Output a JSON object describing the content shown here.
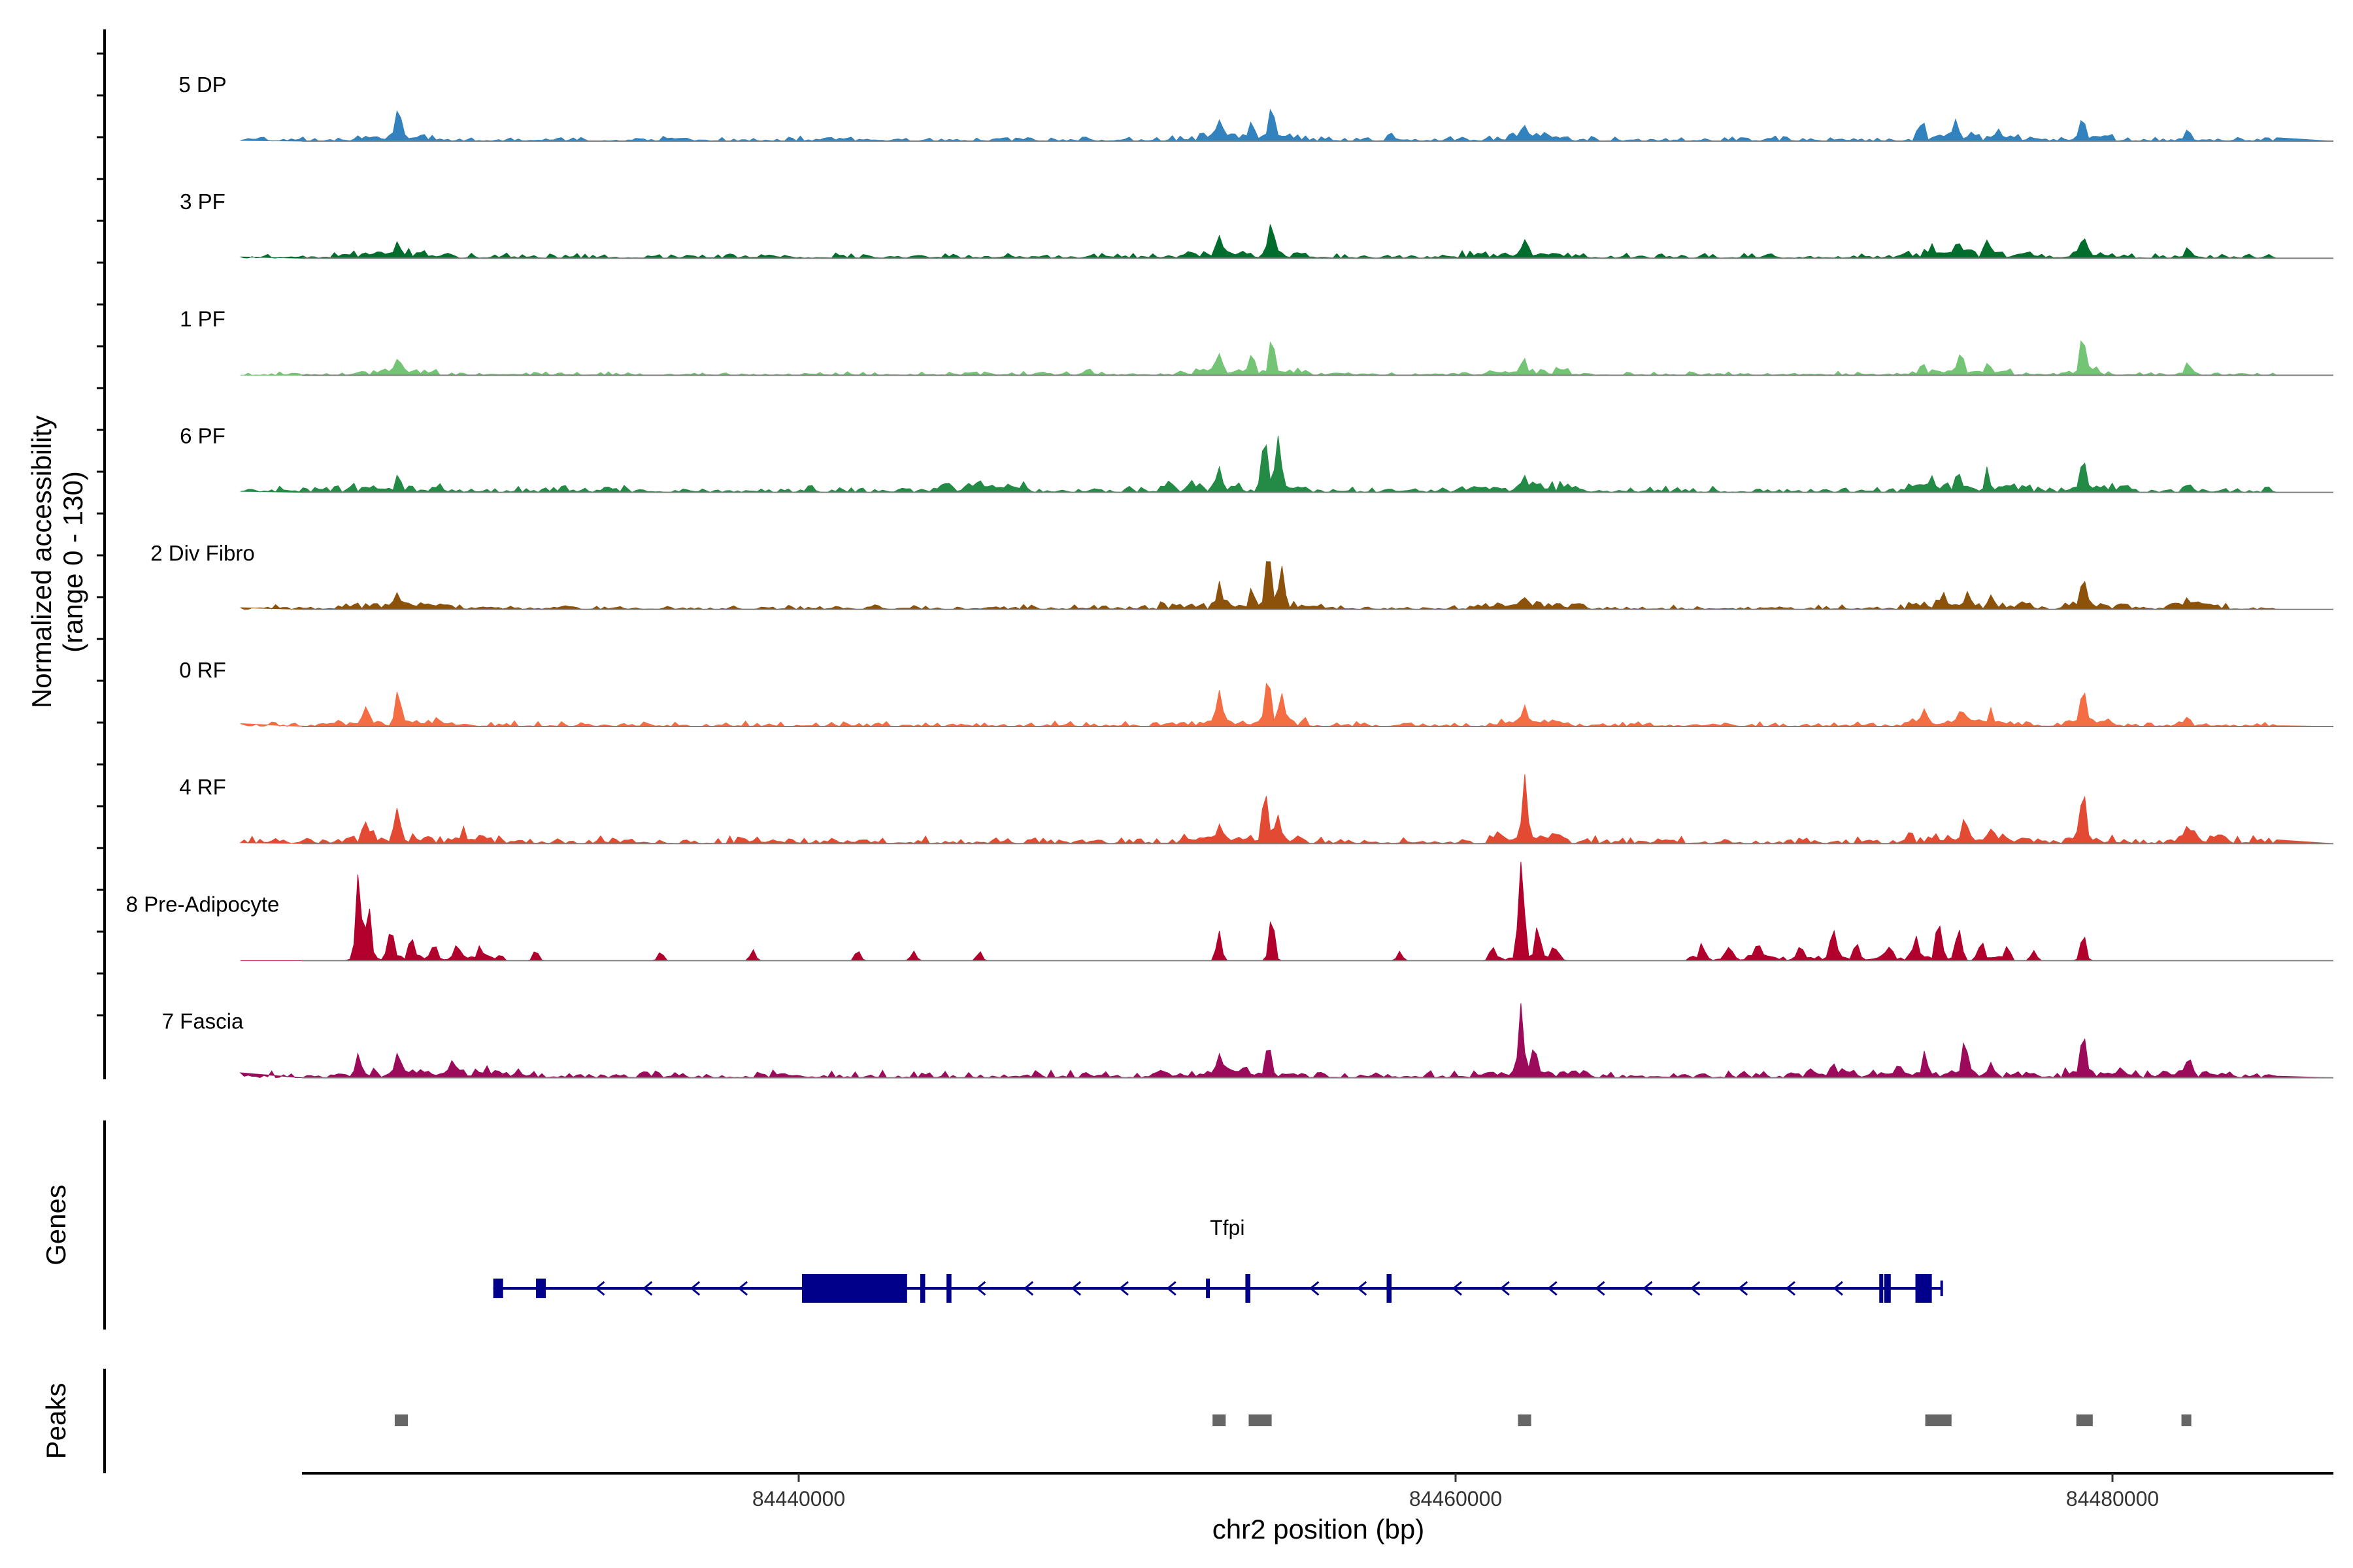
{
  "chart_data": {
    "type": "area",
    "title": "",
    "region": {
      "chromosome": "chr2",
      "start": 84423000,
      "end": 84485000
    },
    "y_axis": {
      "label": "Normalized accessibility",
      "range_label": "(range 0 - 130)",
      "ylim": [
        0,
        130
      ]
    },
    "x_axis": {
      "label": "chr2 position (bp)",
      "ticks": [
        84440000,
        84460000,
        84480000
      ],
      "tick_labels": [
        "84440000",
        "84460000",
        "84480000"
      ]
    },
    "tracks": [
      {
        "name": "5 DP",
        "color": "#3182bd",
        "base": 4,
        "peaks": [
          [
            84427800,
            45
          ],
          [
            84452800,
            28
          ],
          [
            84453800,
            20
          ],
          [
            84454400,
            44
          ],
          [
            84458000,
            10
          ],
          [
            84462100,
            15
          ],
          [
            84474200,
            18
          ],
          [
            84475200,
            18
          ],
          [
            84476500,
            15
          ],
          [
            84479100,
            22
          ],
          [
            84482300,
            16
          ]
        ],
        "noise": [
          [
            84426500,
            84429000
          ],
          [
            84451500,
            84455500
          ],
          [
            84461000,
            84463500
          ],
          [
            84474000,
            84477500
          ],
          [
            84478500,
            84480000
          ]
        ]
      },
      {
        "name": "3 PF",
        "color": "#006d2c",
        "base": 4,
        "peaks": [
          [
            84427800,
            18
          ],
          [
            84452800,
            28
          ],
          [
            84454400,
            48
          ],
          [
            84462100,
            22
          ],
          [
            84474500,
            12
          ],
          [
            84475300,
            18
          ],
          [
            84476200,
            14
          ],
          [
            84479100,
            24
          ],
          [
            84482300,
            12
          ]
        ],
        "noise": [
          [
            84425800,
            84429500
          ],
          [
            84451500,
            84455500
          ],
          [
            84460000,
            84464000
          ],
          [
            84473500,
            84477500
          ],
          [
            84478500,
            84480000
          ]
        ]
      },
      {
        "name": "1 PF",
        "color": "#74c476",
        "base": 3,
        "peaks": [
          [
            84427800,
            22
          ],
          [
            84448800,
            8
          ],
          [
            84452800,
            30
          ],
          [
            84453800,
            20
          ],
          [
            84454400,
            42
          ],
          [
            84462100,
            14
          ],
          [
            84474200,
            10
          ],
          [
            84475400,
            25
          ],
          [
            84476200,
            12
          ],
          [
            84479100,
            55
          ],
          [
            84482300,
            16
          ]
        ],
        "noise": [
          [
            84426500,
            84429000
          ],
          [
            84451500,
            84455500
          ],
          [
            84461000,
            84463500
          ],
          [
            84474000,
            84477000
          ],
          [
            84478500,
            84480000
          ]
        ]
      },
      {
        "name": "6 PF",
        "color": "#238b45",
        "base": 5,
        "peaks": [
          [
            84427800,
            16
          ],
          [
            84445500,
            10
          ],
          [
            84452000,
            10
          ],
          [
            84452800,
            24
          ],
          [
            84454200,
            75
          ],
          [
            84454600,
            60
          ],
          [
            84462100,
            18
          ],
          [
            84474500,
            14
          ],
          [
            84475300,
            22
          ],
          [
            84476200,
            18
          ],
          [
            84479100,
            42
          ],
          [
            84482300,
            10
          ]
        ],
        "noise": [
          [
            84425800,
            84429500
          ],
          [
            84444000,
            84447000
          ],
          [
            84451000,
            84455500
          ],
          [
            84460000,
            84464000
          ],
          [
            84473500,
            84477500
          ],
          [
            84478500,
            84480500
          ]
        ]
      },
      {
        "name": "2 Div Fibro",
        "color": "#8c510a",
        "base": 4,
        "peaks": [
          [
            84427800,
            16
          ],
          [
            84452800,
            28
          ],
          [
            84453800,
            22
          ],
          [
            84454300,
            75
          ],
          [
            84454700,
            55
          ],
          [
            84462100,
            12
          ],
          [
            84474800,
            14
          ],
          [
            84475600,
            18
          ],
          [
            84476300,
            12
          ],
          [
            84479100,
            40
          ],
          [
            84482300,
            10
          ]
        ],
        "noise": [
          [
            84425800,
            84429500
          ],
          [
            84451000,
            84456000
          ],
          [
            84460500,
            84464000
          ],
          [
            84473500,
            84477500
          ],
          [
            84478500,
            84480500
          ],
          [
            84481500,
            84483500
          ]
        ]
      },
      {
        "name": "0 RF",
        "color": "#f46d43",
        "base": 4,
        "peaks": [
          [
            84426800,
            20
          ],
          [
            84427800,
            42
          ],
          [
            84452800,
            45
          ],
          [
            84454300,
            62
          ],
          [
            84454700,
            45
          ],
          [
            84462100,
            25
          ],
          [
            84474300,
            16
          ],
          [
            84475400,
            20
          ],
          [
            84476300,
            16
          ],
          [
            84479100,
            50
          ],
          [
            84482300,
            12
          ]
        ],
        "noise": [
          [
            84425800,
            84429500
          ],
          [
            84451500,
            84455500
          ],
          [
            84461000,
            84463500
          ],
          [
            84473500,
            84477500
          ],
          [
            84478500,
            84480000
          ]
        ]
      },
      {
        "name": "4 RF",
        "color": "#e34a33",
        "base": 6,
        "peaks": [
          [
            84426800,
            20
          ],
          [
            84427800,
            36
          ],
          [
            84429800,
            14
          ],
          [
            84452800,
            24
          ],
          [
            84454200,
            55
          ],
          [
            84454600,
            30
          ],
          [
            84462100,
            75
          ],
          [
            84473800,
            12
          ],
          [
            84475500,
            26
          ],
          [
            84476300,
            14
          ],
          [
            84479100,
            58
          ],
          [
            84482300,
            16
          ]
        ],
        "noise": [
          [
            84425800,
            84431000
          ],
          [
            84451500,
            84455500
          ],
          [
            84461000,
            84463500
          ],
          [
            84473500,
            84477500
          ],
          [
            84478500,
            84480000
          ],
          [
            84481500,
            84483500
          ]
        ]
      },
      {
        "name": "8 Pre-Adipocyte",
        "color": "#b2002d",
        "base": 0,
        "peaks": [
          [
            84426600,
            100
          ],
          [
            84426900,
            70
          ],
          [
            84427600,
            40
          ],
          [
            84428200,
            28
          ],
          [
            84428900,
            20
          ],
          [
            84429600,
            16
          ],
          [
            84430300,
            14
          ],
          [
            84432000,
            14
          ],
          [
            84435800,
            12
          ],
          [
            84438600,
            14
          ],
          [
            84441800,
            14
          ],
          [
            84443500,
            14
          ],
          [
            84445500,
            12
          ],
          [
            84452800,
            35
          ],
          [
            84454400,
            58
          ],
          [
            84458300,
            12
          ],
          [
            84461100,
            14
          ],
          [
            84462000,
            130
          ],
          [
            84462500,
            50
          ],
          [
            84463000,
            14
          ],
          [
            84467500,
            16
          ],
          [
            84468300,
            18
          ],
          [
            84469200,
            20
          ],
          [
            84470500,
            20
          ],
          [
            84471500,
            40
          ],
          [
            84472200,
            18
          ],
          [
            84473200,
            16
          ],
          [
            84474000,
            25
          ],
          [
            84474700,
            45
          ],
          [
            84475300,
            36
          ],
          [
            84476000,
            20
          ],
          [
            84476800,
            14
          ],
          [
            84477600,
            14
          ],
          [
            84479100,
            36
          ]
        ],
        "noise": [
          [
            84426200,
            84431000
          ],
          [
            84461000,
            84463500
          ],
          [
            84467000,
            84477000
          ]
        ]
      },
      {
        "name": "7 Fascia",
        "color": "#9c0a5c",
        "base": 6,
        "peaks": [
          [
            84426600,
            25
          ],
          [
            84427800,
            34
          ],
          [
            84429500,
            14
          ],
          [
            84452800,
            24
          ],
          [
            84454300,
            40
          ],
          [
            84462000,
            88
          ],
          [
            84462400,
            40
          ],
          [
            84471500,
            14
          ],
          [
            84473500,
            14
          ],
          [
            84474300,
            24
          ],
          [
            84475500,
            52
          ],
          [
            84476300,
            14
          ],
          [
            84479100,
            52
          ],
          [
            84482300,
            18
          ]
        ],
        "noise": [
          [
            84425800,
            84431500
          ],
          [
            84451000,
            84455500
          ],
          [
            84460500,
            84464000
          ],
          [
            84470000,
            84477500
          ],
          [
            84478500,
            84480500
          ],
          [
            84481500,
            84483500
          ]
        ]
      }
    ],
    "genes": {
      "section_label": "Genes",
      "gene_name": "Tfpi",
      "strand": "-",
      "start": 84430700,
      "end": 84474800,
      "exons": [
        [
          84430700,
          84431000,
          "utr"
        ],
        [
          84432000,
          84432300,
          "utr"
        ],
        [
          84440100,
          84443300,
          "cds"
        ],
        [
          84443700,
          84443850,
          "cds"
        ],
        [
          84444500,
          84444650,
          "cds"
        ],
        [
          84452400,
          84452450,
          "utr"
        ],
        [
          84453600,
          84453750,
          "cds"
        ],
        [
          84457900,
          84458050,
          "cds"
        ],
        [
          84472900,
          84472980,
          "cds"
        ],
        [
          84473050,
          84473250,
          "cds"
        ],
        [
          84474000,
          84474500,
          "cds"
        ]
      ]
    },
    "peaks_track": {
      "section_label": "Peaks",
      "color": "#666666",
      "regions": [
        [
          84427700,
          84428100
        ],
        [
          84452600,
          84453000
        ],
        [
          84453700,
          84454400
        ],
        [
          84461900,
          84462300
        ],
        [
          84474300,
          84475100
        ],
        [
          84478900,
          84479400
        ],
        [
          84482100,
          84482400
        ]
      ]
    }
  }
}
